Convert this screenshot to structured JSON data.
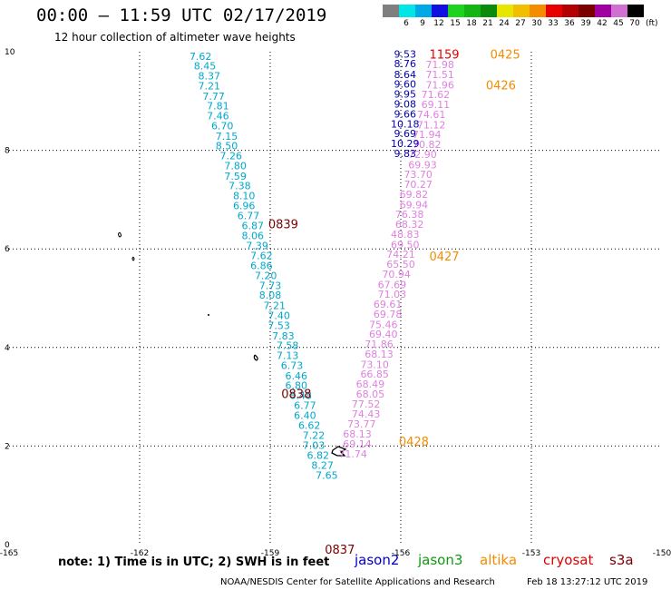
{
  "header": {
    "title": "00:00 – 11:59 UTC 02/17/2019",
    "subtitle": "12 hour collection of altimeter wave heights"
  },
  "legend": {
    "unit": "(ft)",
    "items": [
      {
        "label": "3",
        "color": "#7f7f7f"
      },
      {
        "label": "6",
        "color": "#00e5e5"
      },
      {
        "label": "9",
        "color": "#00a8e6"
      },
      {
        "label": "12",
        "color": "#1010e0"
      },
      {
        "label": "15",
        "color": "#1fd21f"
      },
      {
        "label": "18",
        "color": "#14b414"
      },
      {
        "label": "21",
        "color": "#0c8a0c"
      },
      {
        "label": "24",
        "color": "#e6e600"
      },
      {
        "label": "27",
        "color": "#f0c000"
      },
      {
        "label": "30",
        "color": "#f58c00"
      },
      {
        "label": "33",
        "color": "#e60000"
      },
      {
        "label": "36",
        "color": "#b40000"
      },
      {
        "label": "39",
        "color": "#7a0000"
      },
      {
        "label": "42",
        "color": "#a000a0"
      },
      {
        "label": "45",
        "color": "#d070d0"
      },
      {
        "label": "70",
        "color": "#000000"
      }
    ]
  },
  "chart_data": {
    "type": "scatter",
    "xlim": [
      -165,
      -150
    ],
    "ylim": [
      0,
      10
    ],
    "x_ticks": [
      "-165",
      "-162",
      "-159",
      "-156",
      "-153",
      "-150"
    ],
    "y_ticks": [
      "0",
      "2",
      "4",
      "6",
      "8",
      "10"
    ],
    "grid": true,
    "tracks": [
      {
        "satellite": "s3a",
        "color": "#00a8cc",
        "points": [
          {
            "lon": -160.6,
            "lat": 9.91,
            "v": "7.62"
          },
          {
            "lon": -160.5,
            "lat": 9.71,
            "v": "8.45"
          },
          {
            "lon": -160.4,
            "lat": 9.51,
            "v": "8.37"
          },
          {
            "lon": -160.4,
            "lat": 9.31,
            "v": "7.21"
          },
          {
            "lon": -160.3,
            "lat": 9.1,
            "v": "7.77"
          },
          {
            "lon": -160.2,
            "lat": 8.9,
            "v": "7.81"
          },
          {
            "lon": -160.2,
            "lat": 8.7,
            "v": "7.46"
          },
          {
            "lon": -160.1,
            "lat": 8.5,
            "v": "6.70"
          },
          {
            "lon": -160.0,
            "lat": 8.29,
            "v": "7.15"
          },
          {
            "lon": -160.0,
            "lat": 8.09,
            "v": "8.50"
          },
          {
            "lon": -159.9,
            "lat": 7.89,
            "v": "7.26"
          },
          {
            "lon": -159.8,
            "lat": 7.69,
            "v": "7.80"
          },
          {
            "lon": -159.8,
            "lat": 7.48,
            "v": "7.59"
          },
          {
            "lon": -159.7,
            "lat": 7.28,
            "v": "7.38"
          },
          {
            "lon": -159.6,
            "lat": 7.08,
            "v": "8.10"
          },
          {
            "lon": -159.6,
            "lat": 6.88,
            "v": "6.96"
          },
          {
            "lon": -159.5,
            "lat": 6.68,
            "v": "6.77"
          },
          {
            "lon": -159.4,
            "lat": 6.47,
            "v": "6.87"
          },
          {
            "lon": -159.4,
            "lat": 6.27,
            "v": "8.06"
          },
          {
            "lon": -159.3,
            "lat": 6.07,
            "v": "7.39"
          },
          {
            "lon": -159.2,
            "lat": 5.87,
            "v": "7.62"
          },
          {
            "lon": -159.2,
            "lat": 5.66,
            "v": "6.86"
          },
          {
            "lon": -159.1,
            "lat": 5.46,
            "v": "7.20"
          },
          {
            "lon": -159.0,
            "lat": 5.26,
            "v": "7.73"
          },
          {
            "lon": -159.0,
            "lat": 5.06,
            "v": "8.08"
          },
          {
            "lon": -158.9,
            "lat": 4.85,
            "v": "7.21"
          },
          {
            "lon": -158.8,
            "lat": 4.65,
            "v": "7.40"
          },
          {
            "lon": -158.8,
            "lat": 4.45,
            "v": "7.53"
          },
          {
            "lon": -158.7,
            "lat": 4.24,
            "v": "7.83"
          },
          {
            "lon": -158.6,
            "lat": 4.04,
            "v": "7.58"
          },
          {
            "lon": -158.6,
            "lat": 3.84,
            "v": "7.13"
          },
          {
            "lon": -158.5,
            "lat": 3.64,
            "v": "6.73"
          },
          {
            "lon": -158.4,
            "lat": 3.43,
            "v": "6.46"
          },
          {
            "lon": -158.4,
            "lat": 3.23,
            "v": "6.80"
          },
          {
            "lon": -158.3,
            "lat": 3.03,
            "v": "8.48"
          },
          {
            "lon": -158.2,
            "lat": 2.83,
            "v": "6.77"
          },
          {
            "lon": -158.2,
            "lat": 2.62,
            "v": "6.40"
          },
          {
            "lon": -158.1,
            "lat": 2.42,
            "v": "6.62"
          },
          {
            "lon": -158.0,
            "lat": 2.22,
            "v": "7.22"
          },
          {
            "lon": -158.0,
            "lat": 2.02,
            "v": "7.03"
          },
          {
            "lon": -157.9,
            "lat": 1.81,
            "v": "6.82"
          },
          {
            "lon": -157.8,
            "lat": 1.61,
            "v": "8.27"
          },
          {
            "lon": -157.7,
            "lat": 1.41,
            "v": "7.65"
          }
        ]
      },
      {
        "satellite": "s3a-high",
        "color": "#e080e0",
        "points": [
          {
            "lon": -155.1,
            "lat": 9.74,
            "v": "71.98"
          },
          {
            "lon": -155.1,
            "lat": 9.54,
            "v": "71.51"
          },
          {
            "lon": -155.1,
            "lat": 9.33,
            "v": "71.96"
          },
          {
            "lon": -155.2,
            "lat": 9.13,
            "v": "71.62"
          },
          {
            "lon": -155.2,
            "lat": 8.93,
            "v": "69.11"
          },
          {
            "lon": -155.3,
            "lat": 8.73,
            "v": "74.61"
          },
          {
            "lon": -155.3,
            "lat": 8.52,
            "v": "71.12"
          },
          {
            "lon": -155.4,
            "lat": 8.32,
            "v": "71.94"
          },
          {
            "lon": -155.4,
            "lat": 8.12,
            "v": "70.82"
          },
          {
            "lon": -155.5,
            "lat": 7.92,
            "v": "72.90"
          },
          {
            "lon": -155.5,
            "lat": 7.71,
            "v": "69.93"
          },
          {
            "lon": -155.6,
            "lat": 7.51,
            "v": "73.70"
          },
          {
            "lon": -155.6,
            "lat": 7.31,
            "v": "70.27"
          },
          {
            "lon": -155.7,
            "lat": 7.11,
            "v": "69.82"
          },
          {
            "lon": -155.7,
            "lat": 6.9,
            "v": "69.94"
          },
          {
            "lon": -155.8,
            "lat": 6.7,
            "v": "76.38"
          },
          {
            "lon": -155.8,
            "lat": 6.5,
            "v": "68.32"
          },
          {
            "lon": -155.9,
            "lat": 6.3,
            "v": "48.83"
          },
          {
            "lon": -155.9,
            "lat": 6.09,
            "v": "69.50"
          },
          {
            "lon": -156.0,
            "lat": 5.89,
            "v": "74.21"
          },
          {
            "lon": -156.0,
            "lat": 5.69,
            "v": "65.50"
          },
          {
            "lon": -156.1,
            "lat": 5.49,
            "v": "70.94"
          },
          {
            "lon": -156.2,
            "lat": 5.28,
            "v": "67.69"
          },
          {
            "lon": -156.2,
            "lat": 5.08,
            "v": "71.03"
          },
          {
            "lon": -156.3,
            "lat": 4.88,
            "v": "69.61"
          },
          {
            "lon": -156.3,
            "lat": 4.68,
            "v": "69.78"
          },
          {
            "lon": -156.4,
            "lat": 4.47,
            "v": "75.46"
          },
          {
            "lon": -156.4,
            "lat": 4.27,
            "v": "69.40"
          },
          {
            "lon": -156.5,
            "lat": 4.07,
            "v": "71.86"
          },
          {
            "lon": -156.5,
            "lat": 3.87,
            "v": "68.13"
          },
          {
            "lon": -156.6,
            "lat": 3.66,
            "v": "73.10"
          },
          {
            "lon": -156.6,
            "lat": 3.46,
            "v": "66.85"
          },
          {
            "lon": -156.7,
            "lat": 3.26,
            "v": "68.49"
          },
          {
            "lon": -156.7,
            "lat": 3.06,
            "v": "68.05"
          },
          {
            "lon": -156.8,
            "lat": 2.85,
            "v": "77.52"
          },
          {
            "lon": -156.8,
            "lat": 2.65,
            "v": "74.43"
          },
          {
            "lon": -156.9,
            "lat": 2.45,
            "v": "73.77"
          },
          {
            "lon": -157.0,
            "lat": 2.25,
            "v": "68.13"
          },
          {
            "lon": -157.0,
            "lat": 2.04,
            "v": "69.14"
          },
          {
            "lon": -157.1,
            "lat": 1.84,
            "v": "71.74"
          }
        ]
      },
      {
        "satellite": "jason2",
        "color": "#0000b0",
        "points": [
          {
            "lon": -155.9,
            "lat": 9.95,
            "v": "9.53"
          },
          {
            "lon": -155.9,
            "lat": 9.76,
            "v": "8.76"
          },
          {
            "lon": -155.9,
            "lat": 9.54,
            "v": "8.64"
          },
          {
            "lon": -155.9,
            "lat": 9.35,
            "v": "9.60"
          },
          {
            "lon": -155.9,
            "lat": 9.14,
            "v": "9.95"
          },
          {
            "lon": -155.9,
            "lat": 8.94,
            "v": "9.08"
          },
          {
            "lon": -155.9,
            "lat": 8.74,
            "v": "9.66"
          },
          {
            "lon": -155.9,
            "lat": 8.54,
            "v": "10.18"
          },
          {
            "lon": -155.9,
            "lat": 8.34,
            "v": "9.69"
          },
          {
            "lon": -155.9,
            "lat": 8.14,
            "v": "10.29"
          },
          {
            "lon": -155.9,
            "lat": 7.94,
            "v": "9.83"
          }
        ]
      }
    ],
    "time_labels": [
      {
        "lon": -155.0,
        "lat": 9.95,
        "t": "1159",
        "color": "#e60000"
      },
      {
        "lon": -153.6,
        "lat": 9.95,
        "t": "0425",
        "color": "#f58c00"
      },
      {
        "lon": -153.7,
        "lat": 9.33,
        "t": "0426",
        "color": "#f58c00"
      },
      {
        "lon": -155.0,
        "lat": 5.86,
        "t": "0427",
        "color": "#f58c00"
      },
      {
        "lon": -155.7,
        "lat": 2.1,
        "t": "0428",
        "color": "#f58c00"
      },
      {
        "lon": -158.7,
        "lat": 6.51,
        "t": "0839",
        "color": "#7a0000"
      },
      {
        "lon": -158.4,
        "lat": 3.07,
        "t": "0838",
        "color": "#7a0000"
      },
      {
        "lon": -157.4,
        "lat": -0.09,
        "t": "0837",
        "color": "#7a0000"
      }
    ]
  },
  "note": "note: 1) Time is in UTC; 2) SWH is in feet",
  "satellites": [
    {
      "name": "jason2",
      "color": "#0000cc"
    },
    {
      "name": "jason3",
      "color": "#119911"
    },
    {
      "name": "altika",
      "color": "#f58c00"
    },
    {
      "name": "cryosat",
      "color": "#dd0000"
    },
    {
      "name": "s3a",
      "color": "#7a0000"
    }
  ],
  "footer_left": "NOAA/NESDIS Center for Satellite Applications and Research",
  "footer_right": "Feb 18 13:27:12 UTC 2019"
}
